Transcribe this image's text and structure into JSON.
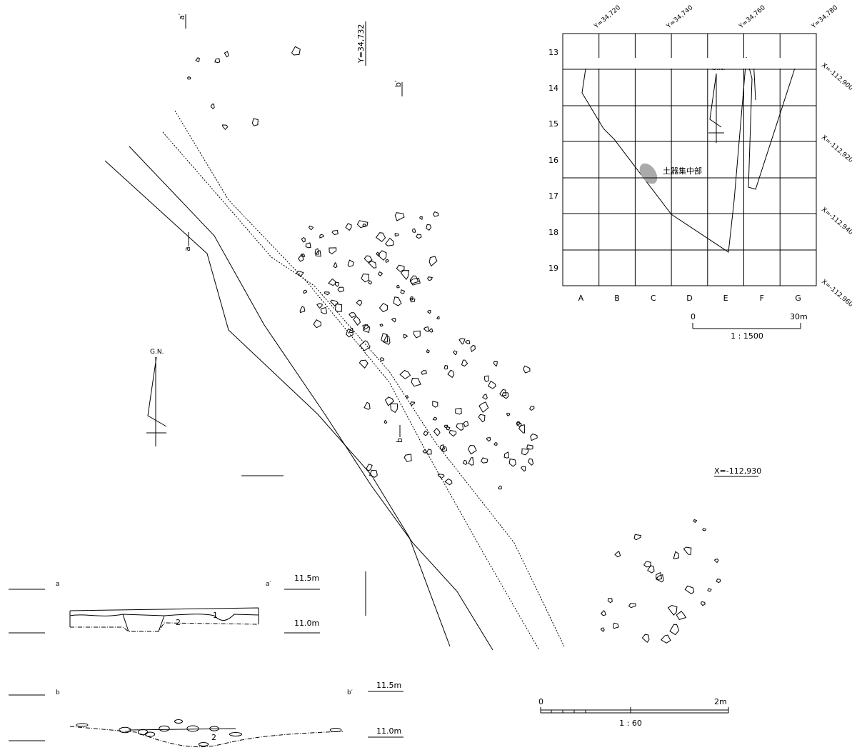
{
  "plan": {
    "section_a": [
      "a",
      "a′"
    ],
    "section_b": [
      "b",
      "b′"
    ],
    "y_label": "Y=34,732",
    "x_label": "X=-112,930",
    "north": "G.N."
  },
  "inset": {
    "top_labels": [
      "Y=34,720",
      "Y=34,740",
      "Y=34,760",
      "Y=34,780"
    ],
    "rows": [
      "13",
      "14",
      "15",
      "16",
      "17",
      "18",
      "19"
    ],
    "columns": [
      "A",
      "B",
      "C",
      "D",
      "E",
      "F",
      "G"
    ],
    "right_labels": [
      "X=-112,900",
      "X=-112,920",
      "X=-112,940",
      "X=-112,960"
    ],
    "feature": "土器集中部",
    "north": "G.N.",
    "scale": {
      "start": "0",
      "end": "30m",
      "ratio": "1 : 1500"
    }
  },
  "sections": [
    {
      "start": "a",
      "end": "a′",
      "upper": "11.5m",
      "lower": "11.0m",
      "layers": [
        "1",
        "2"
      ]
    },
    {
      "start": "b",
      "end": "b′",
      "upper": "11.5m",
      "lower": "11.0m",
      "layers": [
        "2"
      ]
    }
  ],
  "scale": {
    "start": "0",
    "end": "2m",
    "ratio": "1 : 60"
  }
}
